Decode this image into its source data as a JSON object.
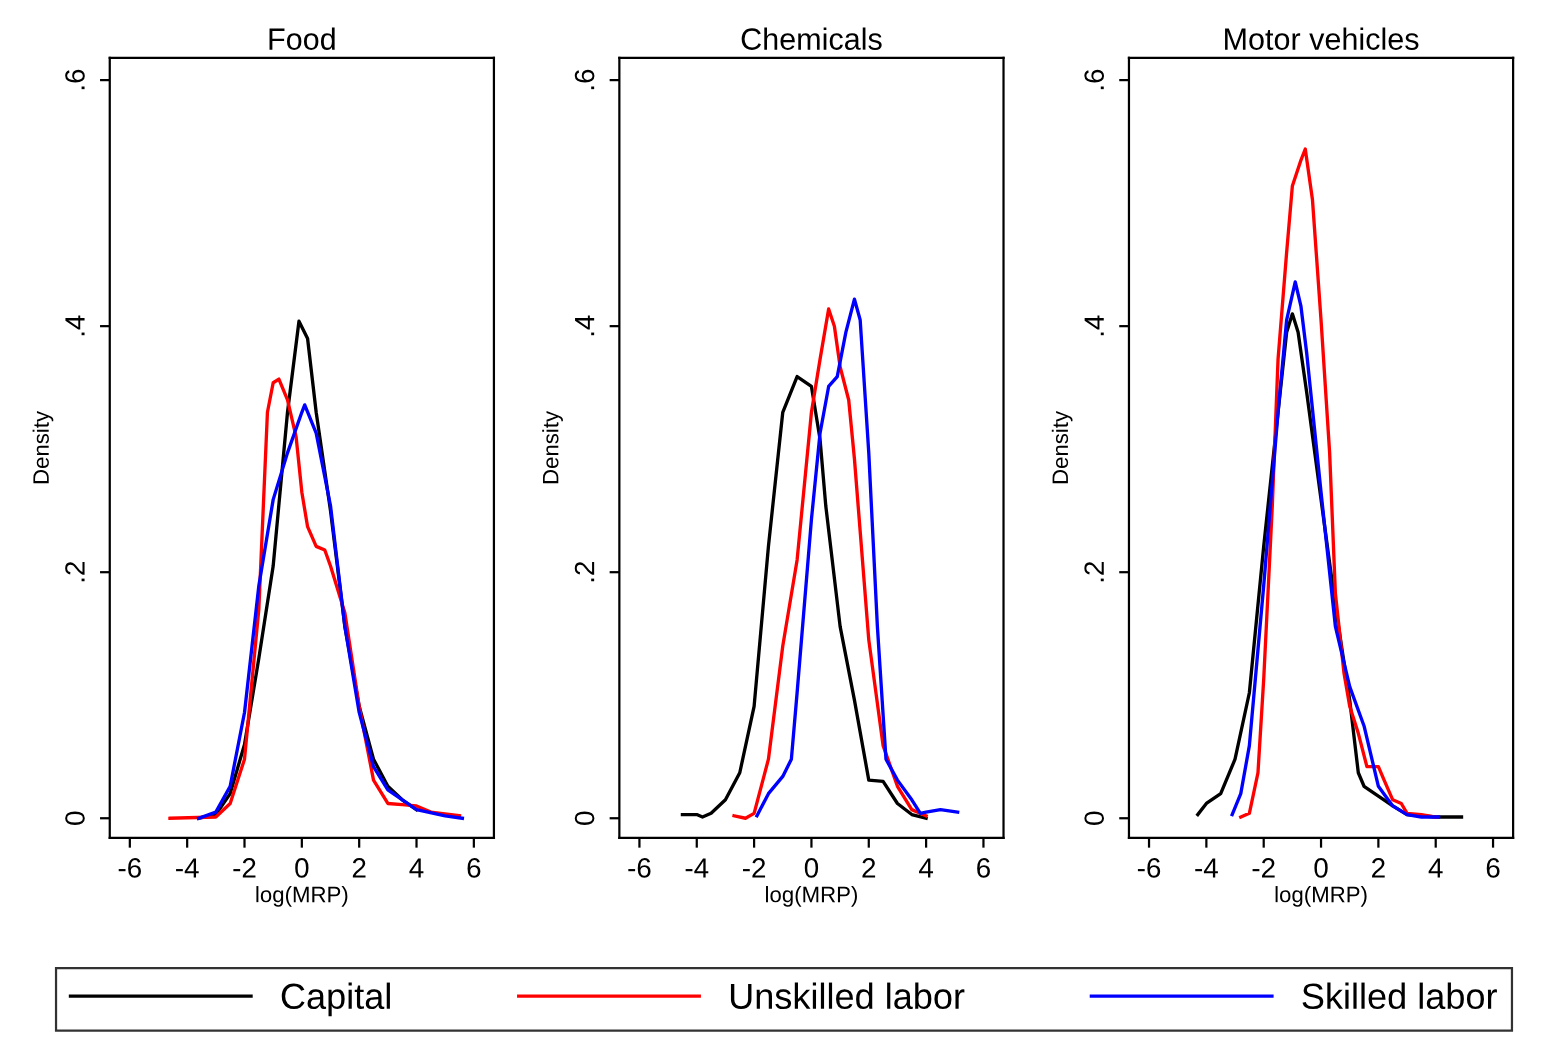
{
  "chart_data": [
    {
      "type": "line",
      "title": "Food",
      "xlabel": "log(MRP)",
      "ylabel": "Density",
      "xlim": [
        -6.7,
        6.7
      ],
      "ylim": [
        -0.016,
        0.618
      ],
      "xticks": [
        -6,
        -4,
        -2,
        0,
        2,
        4,
        6
      ],
      "yticks": [
        {
          "value": 0,
          "label": "0"
        },
        {
          "value": 0.2,
          "label": ".2"
        },
        {
          "value": 0.4,
          "label": ".4"
        },
        {
          "value": 0.6,
          "label": ".6"
        }
      ],
      "grid": false,
      "legend": "bottom",
      "marker": "none",
      "line_style": "solid",
      "series": [
        {
          "name": "Capital",
          "color": "#000000",
          "x": [
            -3.6,
            -3,
            -2.5,
            -2,
            -1.5,
            -1,
            -0.5,
            -0.1,
            0.2,
            0.5,
            1,
            1.5,
            2,
            2.5,
            3,
            3.5,
            4
          ],
          "values": [
            0,
            0.003,
            0.02,
            0.06,
            0.13,
            0.205,
            0.33,
            0.404,
            0.39,
            0.33,
            0.25,
            0.156,
            0.091,
            0.048,
            0.026,
            0.015,
            0.007
          ]
        },
        {
          "name": "Unskilled labor",
          "color": "#ff0000",
          "x": [
            -4.6,
            -3,
            -2.5,
            -2,
            -1.5,
            -1.2,
            -1,
            -0.8,
            -0.5,
            -0.2,
            0,
            0.2,
            0.5,
            0.8,
            1,
            1.5,
            2,
            2.5,
            3,
            3.5,
            4,
            4.5,
            5.5
          ],
          "values": [
            0,
            0.001,
            0.012,
            0.048,
            0.17,
            0.33,
            0.354,
            0.357,
            0.34,
            0.31,
            0.265,
            0.237,
            0.221,
            0.218,
            0.205,
            0.167,
            0.091,
            0.031,
            0.012,
            0.011,
            0.01,
            0.005,
            0.002
          ]
        },
        {
          "name": "Skilled labor",
          "color": "#0000ff",
          "x": [
            -3.6,
            -3,
            -2.5,
            -2,
            -1.5,
            -1,
            -0.5,
            0,
            0.1,
            0.5,
            1,
            1.5,
            2,
            2.5,
            3,
            4,
            5,
            5.6
          ],
          "values": [
            0,
            0.005,
            0.026,
            0.086,
            0.189,
            0.259,
            0.297,
            0.33,
            0.336,
            0.313,
            0.254,
            0.156,
            0.086,
            0.042,
            0.023,
            0.007,
            0.002,
            0
          ]
        }
      ]
    },
    {
      "type": "line",
      "title": "Chemicals",
      "xlabel": "log(MRP)",
      "ylabel": "Density",
      "xlim": [
        -6.7,
        6.7
      ],
      "ylim": [
        -0.016,
        0.618
      ],
      "xticks": [
        -6,
        -4,
        -2,
        0,
        2,
        4,
        6
      ],
      "yticks": [
        {
          "value": 0,
          "label": "0"
        },
        {
          "value": 0.2,
          "label": ".2"
        },
        {
          "value": 0.4,
          "label": ".4"
        },
        {
          "value": 0.6,
          "label": ".6"
        }
      ],
      "grid": false,
      "marker": "none",
      "line_style": "solid",
      "series": [
        {
          "color": "#000000",
          "x": [
            -4.5,
            -4,
            -3.8,
            -3.5,
            -3,
            -2.5,
            -2,
            -1.5,
            -1,
            -0.5,
            0,
            0.3,
            0.5,
            1,
            1.5,
            2,
            2.5,
            3,
            3.5,
            4
          ],
          "values": [
            0.003,
            0.003,
            0.001,
            0.004,
            0.015,
            0.037,
            0.091,
            0.221,
            0.33,
            0.359,
            0.351,
            0.308,
            0.254,
            0.156,
            0.096,
            0.031,
            0.03,
            0.012,
            0.003,
            0
          ]
        },
        {
          "color": "#ff0000",
          "x": [
            -2.7,
            -2.3,
            -2,
            -1.5,
            -1,
            -0.5,
            0,
            0.3,
            0.6,
            0.8,
            1,
            1.3,
            1.5,
            2,
            2.5,
            3,
            3.5,
            4
          ],
          "values": [
            0.002,
            0,
            0.004,
            0.048,
            0.14,
            0.21,
            0.33,
            0.373,
            0.414,
            0.4,
            0.367,
            0.34,
            0.292,
            0.145,
            0.059,
            0.026,
            0.007,
            0.002
          ]
        },
        {
          "color": "#0000ff",
          "x": [
            -1.9,
            -1.5,
            -1,
            -0.7,
            -0.5,
            0,
            0.3,
            0.6,
            0.9,
            1.2,
            1.5,
            1.7,
            2,
            2.3,
            2.6,
            3,
            3.5,
            3.8,
            4,
            4.5,
            5.1
          ],
          "values": [
            0.002,
            0.02,
            0.034,
            0.048,
            0.102,
            0.243,
            0.313,
            0.351,
            0.359,
            0.395,
            0.422,
            0.405,
            0.297,
            0.156,
            0.048,
            0.031,
            0.015,
            0.004,
            0.005,
            0.007,
            0.005
          ]
        }
      ]
    },
    {
      "type": "line",
      "title": "Motor vehicles",
      "xlabel": "log(MRP)",
      "ylabel": "Density",
      "xlim": [
        -6.7,
        6.7
      ],
      "ylim": [
        -0.016,
        0.618
      ],
      "xticks": [
        -6,
        -4,
        -2,
        0,
        2,
        4,
        6
      ],
      "yticks": [
        {
          "value": 0,
          "label": "0"
        },
        {
          "value": 0.2,
          "label": ".2"
        },
        {
          "value": 0.4,
          "label": ".4"
        },
        {
          "value": 0.6,
          "label": ".6"
        }
      ],
      "grid": false,
      "marker": "none",
      "line_style": "solid",
      "series": [
        {
          "color": "#000000",
          "x": [
            -4.3,
            -4,
            -3.5,
            -3,
            -2.5,
            -2,
            -1.5,
            -1.2,
            -1,
            -0.8,
            -0.5,
            0,
            0.5,
            1,
            1.3,
            1.5,
            2,
            2.5,
            3,
            4,
            4.9
          ],
          "values": [
            0.003,
            0.012,
            0.02,
            0.048,
            0.102,
            0.221,
            0.33,
            0.395,
            0.41,
            0.395,
            0.346,
            0.259,
            0.173,
            0.096,
            0.037,
            0.026,
            0.018,
            0.01,
            0.003,
            0.001,
            0.001
          ]
        },
        {
          "color": "#ff0000",
          "x": [
            -2.8,
            -2.5,
            -2.2,
            -2,
            -1.7,
            -1.5,
            -1.2,
            -1,
            -0.7,
            -0.55,
            -0.3,
            0,
            0.3,
            0.5,
            0.8,
            1,
            1.3,
            1.6,
            2,
            2.2,
            2.5,
            2.8,
            3,
            3.5,
            4
          ],
          "values": [
            0.001,
            0.004,
            0.037,
            0.113,
            0.254,
            0.373,
            0.46,
            0.514,
            0.535,
            0.544,
            0.503,
            0.405,
            0.297,
            0.183,
            0.118,
            0.091,
            0.069,
            0.042,
            0.042,
            0.031,
            0.015,
            0.012,
            0.004,
            0.003,
            0.001
          ]
        },
        {
          "color": "#0000ff",
          "x": [
            -3.1,
            -2.8,
            -2.5,
            -2,
            -1.5,
            -1.2,
            -0.9,
            -0.7,
            -0.5,
            0,
            0.5,
            1,
            1.5,
            2,
            2.5,
            3,
            3.5,
            4.1
          ],
          "values": [
            0.003,
            0.02,
            0.059,
            0.189,
            0.33,
            0.405,
            0.436,
            0.416,
            0.378,
            0.265,
            0.156,
            0.107,
            0.075,
            0.026,
            0.01,
            0.003,
            0.001,
            0.001
          ]
        }
      ]
    }
  ]
}
